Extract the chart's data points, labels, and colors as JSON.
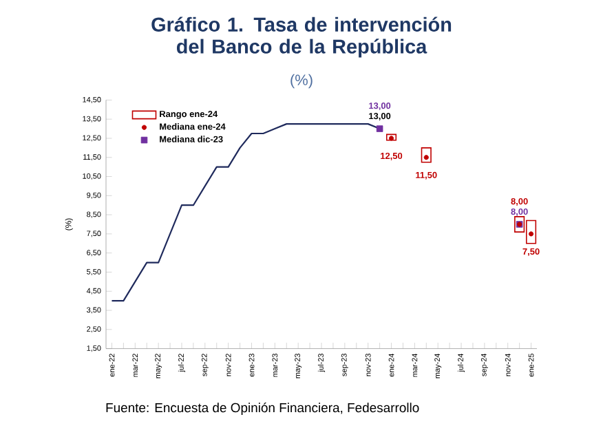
{
  "chart_data": {
    "type": "line",
    "title": "Gráfico 1. Tasa de intervención del Banco de la República",
    "subtitle": "(%)",
    "ylabel": "(%)",
    "annotations": [
      "Fuente: Encuesta de Opinión Financiera, Fedesarrollo"
    ],
    "categories": [
      "ene-22",
      null,
      "mar-22",
      null,
      "may-22",
      null,
      "jul-22",
      null,
      "sep-22",
      null,
      "nov-22",
      null,
      "ene-23",
      null,
      "mar-23",
      null,
      "may-23",
      null,
      "jul-23",
      null,
      "sep-23",
      null,
      "nov-23",
      null,
      "ene-24",
      null,
      "mar-24",
      null,
      "may-24",
      null,
      "jul-24",
      null,
      "sep-24",
      null,
      "nov-24",
      null,
      "ene-25"
    ],
    "ylim": [
      1.5,
      14.5
    ],
    "yticks": [
      {
        "value": 1.5,
        "label": "1,50"
      },
      {
        "value": 2.5,
        "label": "2,50"
      },
      {
        "value": 3.5,
        "label": "3,50"
      },
      {
        "value": 4.5,
        "label": "4,50"
      },
      {
        "value": 5.5,
        "label": "5,50"
      },
      {
        "value": 6.5,
        "label": "6,50"
      },
      {
        "value": 7.5,
        "label": "7,50"
      },
      {
        "value": 8.5,
        "label": "8,50"
      },
      {
        "value": 9.5,
        "label": "9,50"
      },
      {
        "value": 10.5,
        "label": "10,50"
      },
      {
        "value": 11.5,
        "label": "11,50"
      },
      {
        "value": 12.5,
        "label": "12,50"
      },
      {
        "value": 13.5,
        "label": "13,50"
      },
      {
        "value": 14.5,
        "label": "14,50"
      }
    ],
    "grid": false,
    "legend": "top left",
    "series": [
      {
        "color": "#1f2a5c",
        "marker": "none",
        "line_style": "solid",
        "values": [
          4,
          4,
          5,
          6,
          6,
          7.5,
          9,
          9,
          10,
          11,
          11,
          12,
          12.75,
          12.75,
          13,
          13.25,
          13.25,
          13.25,
          13.25,
          13.25,
          13.25,
          13.25,
          13.25,
          13,
          null,
          null,
          null,
          null,
          null,
          null,
          null,
          null,
          null,
          null,
          null,
          null,
          null
        ],
        "value_labels": [
          null,
          null,
          null,
          null,
          null,
          null,
          null,
          null,
          null,
          null,
          null,
          null,
          null,
          null,
          null,
          null,
          null,
          null,
          null,
          null,
          null,
          null,
          null,
          "13,00",
          null,
          null,
          null,
          null,
          null,
          null,
          null,
          null,
          null,
          null,
          null,
          null,
          null
        ]
      },
      {
        "type": "bar",
        "name": "Rango ene-24",
        "color": "#c00000",
        "base": [
          null,
          null,
          null,
          null,
          null,
          null,
          null,
          null,
          null,
          null,
          null,
          null,
          null,
          null,
          null,
          null,
          null,
          null,
          null,
          null,
          null,
          null,
          null,
          null,
          12.4,
          null,
          null,
          11.25,
          null,
          null,
          null,
          null,
          null,
          null,
          null,
          7.6,
          7.0
        ],
        "values": [
          null,
          null,
          null,
          null,
          null,
          null,
          null,
          null,
          null,
          null,
          null,
          null,
          null,
          null,
          null,
          null,
          null,
          null,
          null,
          null,
          null,
          null,
          null,
          null,
          0.3,
          null,
          null,
          0.75,
          null,
          null,
          null,
          null,
          null,
          null,
          null,
          0.8,
          1.2
        ]
      },
      {
        "type": "scatter",
        "name": "Mediana ene-24",
        "color": "#c00000",
        "marker": "circle",
        "values": [
          null,
          null,
          null,
          null,
          null,
          null,
          null,
          null,
          null,
          null,
          null,
          null,
          null,
          null,
          null,
          null,
          null,
          null,
          null,
          null,
          null,
          null,
          null,
          null,
          12.5,
          null,
          null,
          11.5,
          null,
          null,
          null,
          null,
          null,
          null,
          null,
          8.0,
          7.5
        ],
        "value_labels": [
          null,
          null,
          null,
          null,
          null,
          null,
          null,
          null,
          null,
          null,
          null,
          null,
          null,
          null,
          null,
          null,
          null,
          null,
          null,
          null,
          null,
          null,
          null,
          null,
          "12,50",
          null,
          null,
          "11,50",
          null,
          null,
          null,
          null,
          null,
          null,
          null,
          "8,00",
          "7,50"
        ]
      },
      {
        "type": "scatter",
        "name": "Mediana dic-23",
        "color": "#7030a0",
        "marker": "square",
        "values": [
          null,
          null,
          null,
          null,
          null,
          null,
          null,
          null,
          null,
          null,
          null,
          null,
          null,
          null,
          null,
          null,
          null,
          null,
          null,
          null,
          null,
          null,
          null,
          13.0,
          null,
          null,
          null,
          null,
          null,
          null,
          null,
          null,
          null,
          null,
          null,
          8.0,
          null
        ],
        "value_labels": [
          null,
          null,
          null,
          null,
          null,
          null,
          null,
          null,
          null,
          null,
          null,
          null,
          null,
          null,
          null,
          null,
          null,
          null,
          null,
          null,
          null,
          null,
          null,
          "13,00",
          null,
          null,
          null,
          null,
          null,
          null,
          null,
          null,
          null,
          null,
          null,
          "8,00",
          null
        ]
      }
    ]
  }
}
